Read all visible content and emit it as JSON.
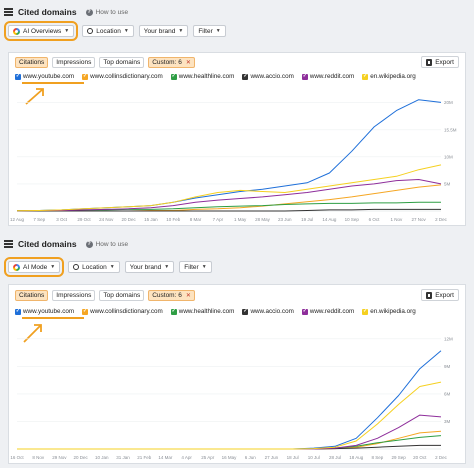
{
  "colors": {
    "youtube": "#1e6fd9",
    "collinsdictionary": "#f5a623",
    "healthline": "#2e9e44",
    "accio": "#333333",
    "reddit": "#8e2e9b",
    "wikipedia": "#f5d020",
    "accent": "#f0a020"
  },
  "panels": [
    {
      "title": "Cited domains",
      "how_to_use": "How to use",
      "filters": {
        "mode": "AI Overviews",
        "location": "Location",
        "brand": "Your brand",
        "filter": "Filter"
      },
      "tabs": [
        "Citations",
        "Impressions",
        "Top domains",
        "Custom: 6"
      ],
      "export_label": "Export",
      "legend": [
        "www.youtube.com",
        "www.collinsdictionary.com",
        "www.healthline.com",
        "www.accio.com",
        "www.reddit.com",
        "en.wikipedia.org"
      ],
      "chart_data": {
        "type": "line",
        "x": [
          "12 Aug",
          "7 Sep",
          "3 Oct",
          "29 Oct",
          "24 Nov",
          "20 Dec",
          "15 Jan",
          "10 Feb",
          "8 Mar",
          "7 Apr",
          "1 May",
          "28 May",
          "23 Jun",
          "19 Jul",
          "14 Aug",
          "10 Sep",
          "6 Oct",
          "1 Nov",
          "27 Nov",
          "2 Dec"
        ],
        "y_ticks": [
          "5M",
          "10M",
          "15.5M",
          "20M"
        ],
        "ylim": [
          0,
          21
        ],
        "series": [
          {
            "name": "www.youtube.com",
            "values": [
              0.05,
              0.1,
              0.2,
              0.4,
              0.6,
              0.8,
              1.0,
              1.6,
              2.4,
              3.0,
              3.6,
              4.0,
              4.6,
              5.2,
              7.0,
              11.0,
              15.5,
              18.5,
              20.5,
              20.0
            ]
          },
          {
            "name": "www.collinsdictionary.com",
            "values": [
              0,
              0,
              0,
              0,
              0,
              0,
              0.1,
              0.1,
              0.3,
              0.4,
              0.6,
              0.9,
              1.3,
              1.7,
              2.1,
              2.6,
              3.2,
              3.8,
              4.4,
              4.8
            ]
          },
          {
            "name": "www.healthline.com",
            "values": [
              0.1,
              0.1,
              0.15,
              0.2,
              0.2,
              0.3,
              0.3,
              0.4,
              0.6,
              0.8,
              0.9,
              1.0,
              1.2,
              1.3,
              1.4,
              1.4,
              1.5,
              1.5,
              1.6,
              1.6
            ]
          },
          {
            "name": "www.accio.com",
            "values": [
              0,
              0,
              0,
              0,
              0,
              0,
              0,
              0,
              0,
              0,
              0,
              0,
              0,
              0.1,
              0.2,
              0.2,
              0.3,
              0.3,
              0.3,
              0.3
            ]
          },
          {
            "name": "www.reddit.com",
            "values": [
              0.05,
              0.1,
              0.1,
              0.2,
              0.3,
              0.4,
              0.6,
              1.0,
              1.6,
              2.0,
              2.3,
              2.6,
              3.0,
              3.4,
              4.0,
              4.6,
              5.0,
              5.6,
              5.8,
              5.0
            ]
          },
          {
            "name": "en.wikipedia.org",
            "values": [
              0.05,
              0.1,
              0.2,
              0.4,
              0.6,
              0.8,
              1.0,
              1.6,
              2.6,
              3.4,
              3.8,
              3.6,
              3.4,
              4.0,
              4.6,
              5.2,
              5.8,
              6.4,
              7.6,
              8.5
            ]
          }
        ]
      }
    },
    {
      "title": "Cited domains",
      "how_to_use": "How to use",
      "filters": {
        "mode": "AI Mode",
        "location": "Location",
        "brand": "Your brand",
        "filter": "Filter"
      },
      "tabs": [
        "Citations",
        "Impressions",
        "Top domains",
        "Custom: 6"
      ],
      "export_label": "Export",
      "legend": [
        "www.youtube.com",
        "www.collinsdictionary.com",
        "www.healthline.com",
        "www.accio.com",
        "www.reddit.com",
        "en.wikipedia.org"
      ],
      "chart_data": {
        "type": "line",
        "x": [
          "16 Oct",
          "8 Nov",
          "29 Nov",
          "20 Dec",
          "10 Jan",
          "31 Jan",
          "21 Feb",
          "14 Mar",
          "4 Apr",
          "25 Apr",
          "16 May",
          "6 Jun",
          "27 Jun",
          "18 Jul",
          "10 Jul",
          "28 Jul",
          "18 Aug",
          "8 Sep",
          "29 Sep",
          "20 Oct",
          "2 Dec"
        ],
        "y_ticks": [
          "3M",
          "6M",
          "9M",
          "12M"
        ],
        "ylim": [
          0,
          13
        ],
        "series": [
          {
            "name": "www.youtube.com",
            "values": [
              0,
              0,
              0,
              0,
              0,
              0,
              0,
              0,
              0,
              0,
              0,
              0,
              0,
              0,
              0.1,
              0.3,
              1.2,
              3.5,
              6.0,
              9.0,
              11.0
            ]
          },
          {
            "name": "www.collinsdictionary.com",
            "values": [
              0,
              0,
              0,
              0,
              0,
              0,
              0,
              0,
              0,
              0,
              0,
              0,
              0,
              0,
              0,
              0.05,
              0.2,
              0.6,
              1.2,
              1.8,
              2.0
            ]
          },
          {
            "name": "www.healthline.com",
            "values": [
              0,
              0,
              0,
              0,
              0,
              0,
              0,
              0,
              0,
              0,
              0,
              0,
              0,
              0,
              0,
              0.1,
              0.3,
              0.7,
              1.0,
              1.3,
              1.5
            ]
          },
          {
            "name": "www.accio.com",
            "values": [
              0,
              0,
              0,
              0,
              0,
              0,
              0,
              0,
              0,
              0,
              0,
              0,
              0,
              0,
              0,
              0.05,
              0.1,
              0.2,
              0.3,
              0.4,
              0.4
            ]
          },
          {
            "name": "www.reddit.com",
            "values": [
              0,
              0,
              0,
              0,
              0,
              0,
              0,
              0,
              0,
              0,
              0,
              0,
              0,
              0,
              0,
              0.1,
              0.4,
              1.2,
              2.4,
              3.8,
              3.6
            ]
          },
          {
            "name": "en.wikipedia.org",
            "values": [
              0,
              0,
              0,
              0,
              0,
              0,
              0,
              0,
              0,
              0,
              0,
              0,
              0,
              0,
              0.05,
              0.2,
              0.9,
              2.8,
              5.0,
              7.0,
              7.5
            ]
          }
        ]
      }
    }
  ]
}
